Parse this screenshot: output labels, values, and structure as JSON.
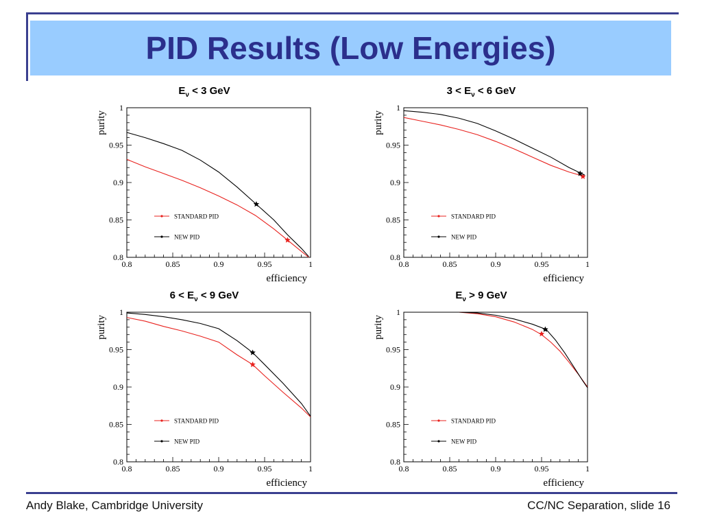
{
  "slide": {
    "title": "PID Results (Low Energies)",
    "footer_left": "Andy Blake, Cambridge University",
    "footer_right": "CC/NC Separation, slide 16",
    "colors": {
      "frame": "#3a3f8f",
      "title_band": "#99ccff",
      "title_text": "#2b2f8c"
    }
  },
  "chart_data": [
    {
      "type": "line",
      "title_parts": {
        "pre": "E",
        "sub": "ν",
        "post": " < 3 GeV"
      },
      "xlabel": "efficiency",
      "ylabel": "purity",
      "xlim": [
        0.8,
        1.0
      ],
      "ylim": [
        0.8,
        1.0
      ],
      "xticks": [
        "0.8",
        "0.85",
        "0.9",
        "0.95",
        "1"
      ],
      "yticks": [
        "0.8",
        "0.85",
        "0.9",
        "0.95",
        "1"
      ],
      "legend_position": "center-left",
      "series": [
        {
          "name": "STANDARD PID",
          "color": "#e8211d",
          "x": [
            0.8,
            0.82,
            0.84,
            0.86,
            0.88,
            0.9,
            0.92,
            0.94,
            0.96,
            0.975,
            0.99,
            0.998
          ],
          "y": [
            0.931,
            0.921,
            0.912,
            0.903,
            0.893,
            0.882,
            0.87,
            0.856,
            0.838,
            0.823,
            0.808,
            0.8
          ],
          "marker": {
            "x": 0.975,
            "y": 0.823
          }
        },
        {
          "name": "NEW PID",
          "color": "#000000",
          "x": [
            0.8,
            0.82,
            0.84,
            0.86,
            0.88,
            0.9,
            0.92,
            0.94,
            0.96,
            0.975,
            0.99,
            0.998
          ],
          "y": [
            0.967,
            0.96,
            0.952,
            0.943,
            0.93,
            0.914,
            0.894,
            0.872,
            0.85,
            0.83,
            0.812,
            0.801
          ],
          "marker": {
            "x": 0.941,
            "y": 0.871
          }
        }
      ]
    },
    {
      "type": "line",
      "title_parts": {
        "pre": "3 < E",
        "sub": "ν",
        "post": " < 6 GeV"
      },
      "xlabel": "efficiency",
      "ylabel": "purity",
      "xlim": [
        0.8,
        1.0
      ],
      "ylim": [
        0.8,
        1.0
      ],
      "xticks": [
        "0.8",
        "0.85",
        "0.9",
        "0.95",
        "1"
      ],
      "yticks": [
        "0.8",
        "0.85",
        "0.9",
        "0.95",
        "1"
      ],
      "legend_position": "center-left",
      "series": [
        {
          "name": "STANDARD PID",
          "color": "#e8211d",
          "x": [
            0.8,
            0.82,
            0.84,
            0.86,
            0.88,
            0.9,
            0.92,
            0.94,
            0.96,
            0.98,
            0.997
          ],
          "y": [
            0.987,
            0.982,
            0.977,
            0.971,
            0.964,
            0.955,
            0.945,
            0.934,
            0.923,
            0.914,
            0.908
          ],
          "marker": {
            "x": 0.995,
            "y": 0.908
          }
        },
        {
          "name": "NEW PID",
          "color": "#000000",
          "x": [
            0.8,
            0.82,
            0.84,
            0.86,
            0.88,
            0.9,
            0.92,
            0.94,
            0.96,
            0.98,
            0.997
          ],
          "y": [
            0.996,
            0.994,
            0.991,
            0.986,
            0.979,
            0.969,
            0.958,
            0.946,
            0.934,
            0.92,
            0.91
          ],
          "marker": {
            "x": 0.992,
            "y": 0.912
          }
        }
      ]
    },
    {
      "type": "line",
      "title_parts": {
        "pre": "6 < E",
        "sub": "ν",
        "post": " < 9 GeV"
      },
      "xlabel": "efficiency",
      "ylabel": "purity",
      "xlim": [
        0.8,
        1.0
      ],
      "ylim": [
        0.8,
        1.0
      ],
      "xticks": [
        "0.8",
        "0.85",
        "0.9",
        "0.95",
        "1"
      ],
      "yticks": [
        "0.8",
        "0.85",
        "0.9",
        "0.95",
        "1"
      ],
      "legend_position": "center-left",
      "series": [
        {
          "name": "STANDARD PID",
          "color": "#e8211d",
          "x": [
            0.8,
            0.82,
            0.84,
            0.86,
            0.88,
            0.9,
            0.92,
            0.937,
            0.95,
            0.97,
            0.99,
            1.0
          ],
          "y": [
            0.993,
            0.988,
            0.981,
            0.975,
            0.968,
            0.96,
            0.943,
            0.93,
            0.915,
            0.893,
            0.872,
            0.86
          ],
          "marker": {
            "x": 0.937,
            "y": 0.93
          }
        },
        {
          "name": "NEW PID",
          "color": "#000000",
          "x": [
            0.8,
            0.82,
            0.84,
            0.86,
            0.88,
            0.9,
            0.92,
            0.937,
            0.95,
            0.97,
            0.99,
            1.0
          ],
          "y": [
            0.999,
            0.997,
            0.994,
            0.99,
            0.985,
            0.978,
            0.962,
            0.946,
            0.93,
            0.905,
            0.878,
            0.861
          ],
          "marker": {
            "x": 0.937,
            "y": 0.946
          }
        }
      ]
    },
    {
      "type": "line",
      "title_parts": {
        "pre": "E",
        "sub": "ν",
        "post": " > 9 GeV"
      },
      "xlabel": "efficiency",
      "ylabel": "purity",
      "xlim": [
        0.8,
        1.0
      ],
      "ylim": [
        0.8,
        1.0
      ],
      "xticks": [
        "0.8",
        "0.85",
        "0.9",
        "0.95",
        "1"
      ],
      "yticks": [
        "0.8",
        "0.85",
        "0.9",
        "0.95",
        "1"
      ],
      "legend_position": "center-left",
      "series": [
        {
          "name": "STANDARD PID",
          "color": "#e8211d",
          "x": [
            0.86,
            0.88,
            0.9,
            0.92,
            0.94,
            0.95,
            0.96,
            0.97,
            0.98,
            0.99,
            1.0
          ],
          "y": [
            1.0,
            0.998,
            0.994,
            0.987,
            0.977,
            0.97,
            0.96,
            0.948,
            0.933,
            0.917,
            0.9
          ],
          "marker": {
            "x": 0.95,
            "y": 0.971
          }
        },
        {
          "name": "NEW PID",
          "color": "#000000",
          "x": [
            0.86,
            0.88,
            0.9,
            0.92,
            0.94,
            0.955,
            0.965,
            0.975,
            0.985,
            0.995,
            1.0
          ],
          "y": [
            1.0,
            0.999,
            0.996,
            0.991,
            0.984,
            0.977,
            0.963,
            0.946,
            0.927,
            0.908,
            0.899
          ],
          "marker": {
            "x": 0.954,
            "y": 0.977
          }
        }
      ]
    }
  ]
}
